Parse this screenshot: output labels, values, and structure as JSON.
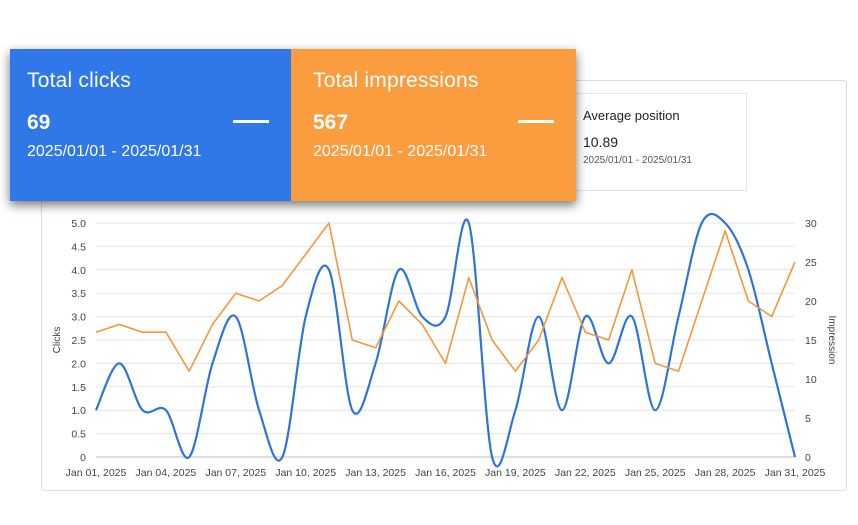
{
  "cards": {
    "clicks": {
      "title": "Total clicks",
      "value": "69",
      "date_range": "2025/01/01 - 2025/01/31",
      "color": "#3077e8"
    },
    "impressions": {
      "title": "Total impressions",
      "value": "567",
      "date_range": "2025/01/01 - 2025/01/31",
      "color": "#fb9c3e"
    },
    "position": {
      "title": "Average position",
      "value": "10.89",
      "date_range": "2025/01/01 - 2025/01/31"
    }
  },
  "chart_data": {
    "type": "line",
    "title": "",
    "xlabel": "",
    "ylabel": "Clicks",
    "y2label": "Impression",
    "ylim": [
      0,
      5
    ],
    "y2lim": [
      0,
      30
    ],
    "y_ticks": [
      "0",
      "0.5",
      "1.0",
      "1.5",
      "2.0",
      "2.5",
      "3.0",
      "3.5",
      "4.0",
      "4.5",
      "5.0"
    ],
    "y2_ticks": [
      "0",
      "5",
      "10",
      "15",
      "20",
      "25",
      "30"
    ],
    "x_tick_labels": [
      "Jan 01, 2025",
      "Jan 04, 2025",
      "Jan 07, 2025",
      "Jan 10, 2025",
      "Jan 13, 2025",
      "Jan 16, 2025",
      "Jan 19, 2025",
      "Jan 22, 2025",
      "Jan 25, 2025",
      "Jan 28, 2025",
      "Jan 31, 2025"
    ],
    "grid": true,
    "legend": "none",
    "x": [
      "Jan 01",
      "Jan 02",
      "Jan 03",
      "Jan 04",
      "Jan 05",
      "Jan 06",
      "Jan 07",
      "Jan 08",
      "Jan 09",
      "Jan 10",
      "Jan 11",
      "Jan 12",
      "Jan 13",
      "Jan 14",
      "Jan 15",
      "Jan 16",
      "Jan 17",
      "Jan 18",
      "Jan 19",
      "Jan 20",
      "Jan 21",
      "Jan 22",
      "Jan 23",
      "Jan 24",
      "Jan 25",
      "Jan 26",
      "Jan 27",
      "Jan 28",
      "Jan 29",
      "Jan 30",
      "Jan 31"
    ],
    "series": [
      {
        "name": "Clicks",
        "axis": "left",
        "color": "#2f74d8",
        "smooth": true,
        "values": [
          1,
          2,
          1,
          1,
          0,
          2,
          3,
          1,
          0,
          3,
          4,
          1,
          2,
          4,
          3,
          3,
          5,
          0,
          1,
          3,
          1,
          3,
          2,
          3,
          1,
          3,
          5,
          5,
          4,
          2,
          0
        ]
      },
      {
        "name": "Impressions",
        "axis": "right",
        "color": "#f5973a",
        "smooth": false,
        "values": [
          16,
          17,
          16,
          16,
          11,
          17,
          21,
          20,
          22,
          26,
          30,
          15,
          14,
          20,
          17,
          12,
          23,
          15,
          11,
          15,
          23,
          16,
          15,
          24,
          12,
          11,
          20,
          29,
          20,
          18,
          25
        ]
      }
    ]
  }
}
